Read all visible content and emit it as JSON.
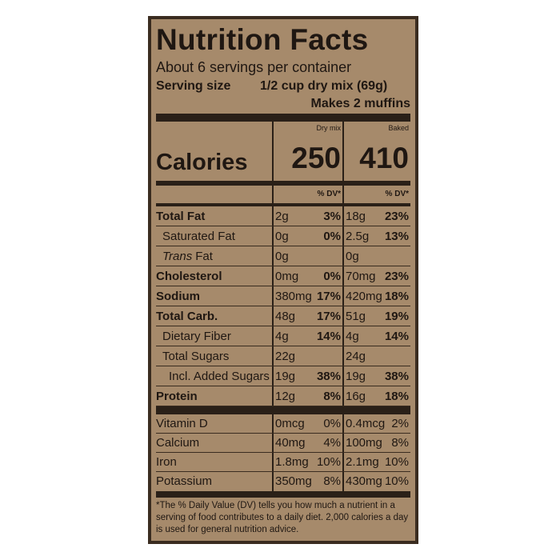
{
  "title": "Nutrition Facts",
  "servings": "About 6 servings per container",
  "serving_size": {
    "label": "Serving size",
    "value": "1/2 cup dry mix (69g)"
  },
  "makes": "Makes 2 muffins",
  "columns": [
    "Dry mix",
    "Baked"
  ],
  "calories": {
    "label": "Calories",
    "dry": "250",
    "baked": "410"
  },
  "dv_header": [
    "% DV*",
    "% DV*"
  ],
  "nutrients": [
    {
      "name": "Total Fat",
      "dry": "2g",
      "dry_dv": "3%",
      "baked": "18g",
      "baked_dv": "23%"
    },
    {
      "name": "Saturated Fat",
      "dry": "0g",
      "dry_dv": "0%",
      "baked": "2.5g",
      "baked_dv": "13%"
    },
    {
      "name": [
        "Trans",
        "Fat"
      ],
      "dry": "0g",
      "baked": "0g"
    },
    {
      "name": "Cholesterol",
      "dry": "0mg",
      "dry_dv": "0%",
      "baked": "70mg",
      "baked_dv": "23%"
    },
    {
      "name": "Sodium",
      "dry": "380mg",
      "dry_dv": "17%",
      "baked": "420mg",
      "baked_dv": "18%"
    },
    {
      "name": "Total Carb.",
      "dry": "48g",
      "dry_dv": "17%",
      "baked": "51g",
      "baked_dv": "19%"
    },
    {
      "name": "Dietary Fiber",
      "dry": "4g",
      "dry_dv": "14%",
      "baked": "4g",
      "baked_dv": "14%"
    },
    {
      "name": "Total Sugars",
      "dry": "22g",
      "baked": "24g"
    },
    {
      "name": "Incl. Added Sugars",
      "dry": "19g",
      "dry_dv": "38%",
      "baked": "19g",
      "baked_dv": "38%"
    },
    {
      "name": "Protein",
      "dry": "12g",
      "dry_dv": "8%",
      "baked": "16g",
      "baked_dv": "18%"
    }
  ],
  "vitamins": [
    {
      "name": "Vitamin D",
      "dry": "0mcg",
      "dry_dv": "0%",
      "baked": "0.4mcg",
      "baked_dv": "2%"
    },
    {
      "name": "Calcium",
      "dry": "40mg",
      "dry_dv": "4%",
      "baked": "100mg",
      "baked_dv": "8%"
    },
    {
      "name": "Iron",
      "dry": "1.8mg",
      "dry_dv": "10%",
      "baked": "2.1mg",
      "baked_dv": "10%"
    },
    {
      "name": "Potassium",
      "dry": "350mg",
      "dry_dv": "8%",
      "baked": "430mg",
      "baked_dv": "10%"
    }
  ],
  "footnote": "*The % Daily Value (DV) tells you how much a nutrient in a serving of food contributes to a daily diet. 2,000 calories a day is used for general nutrition advice."
}
